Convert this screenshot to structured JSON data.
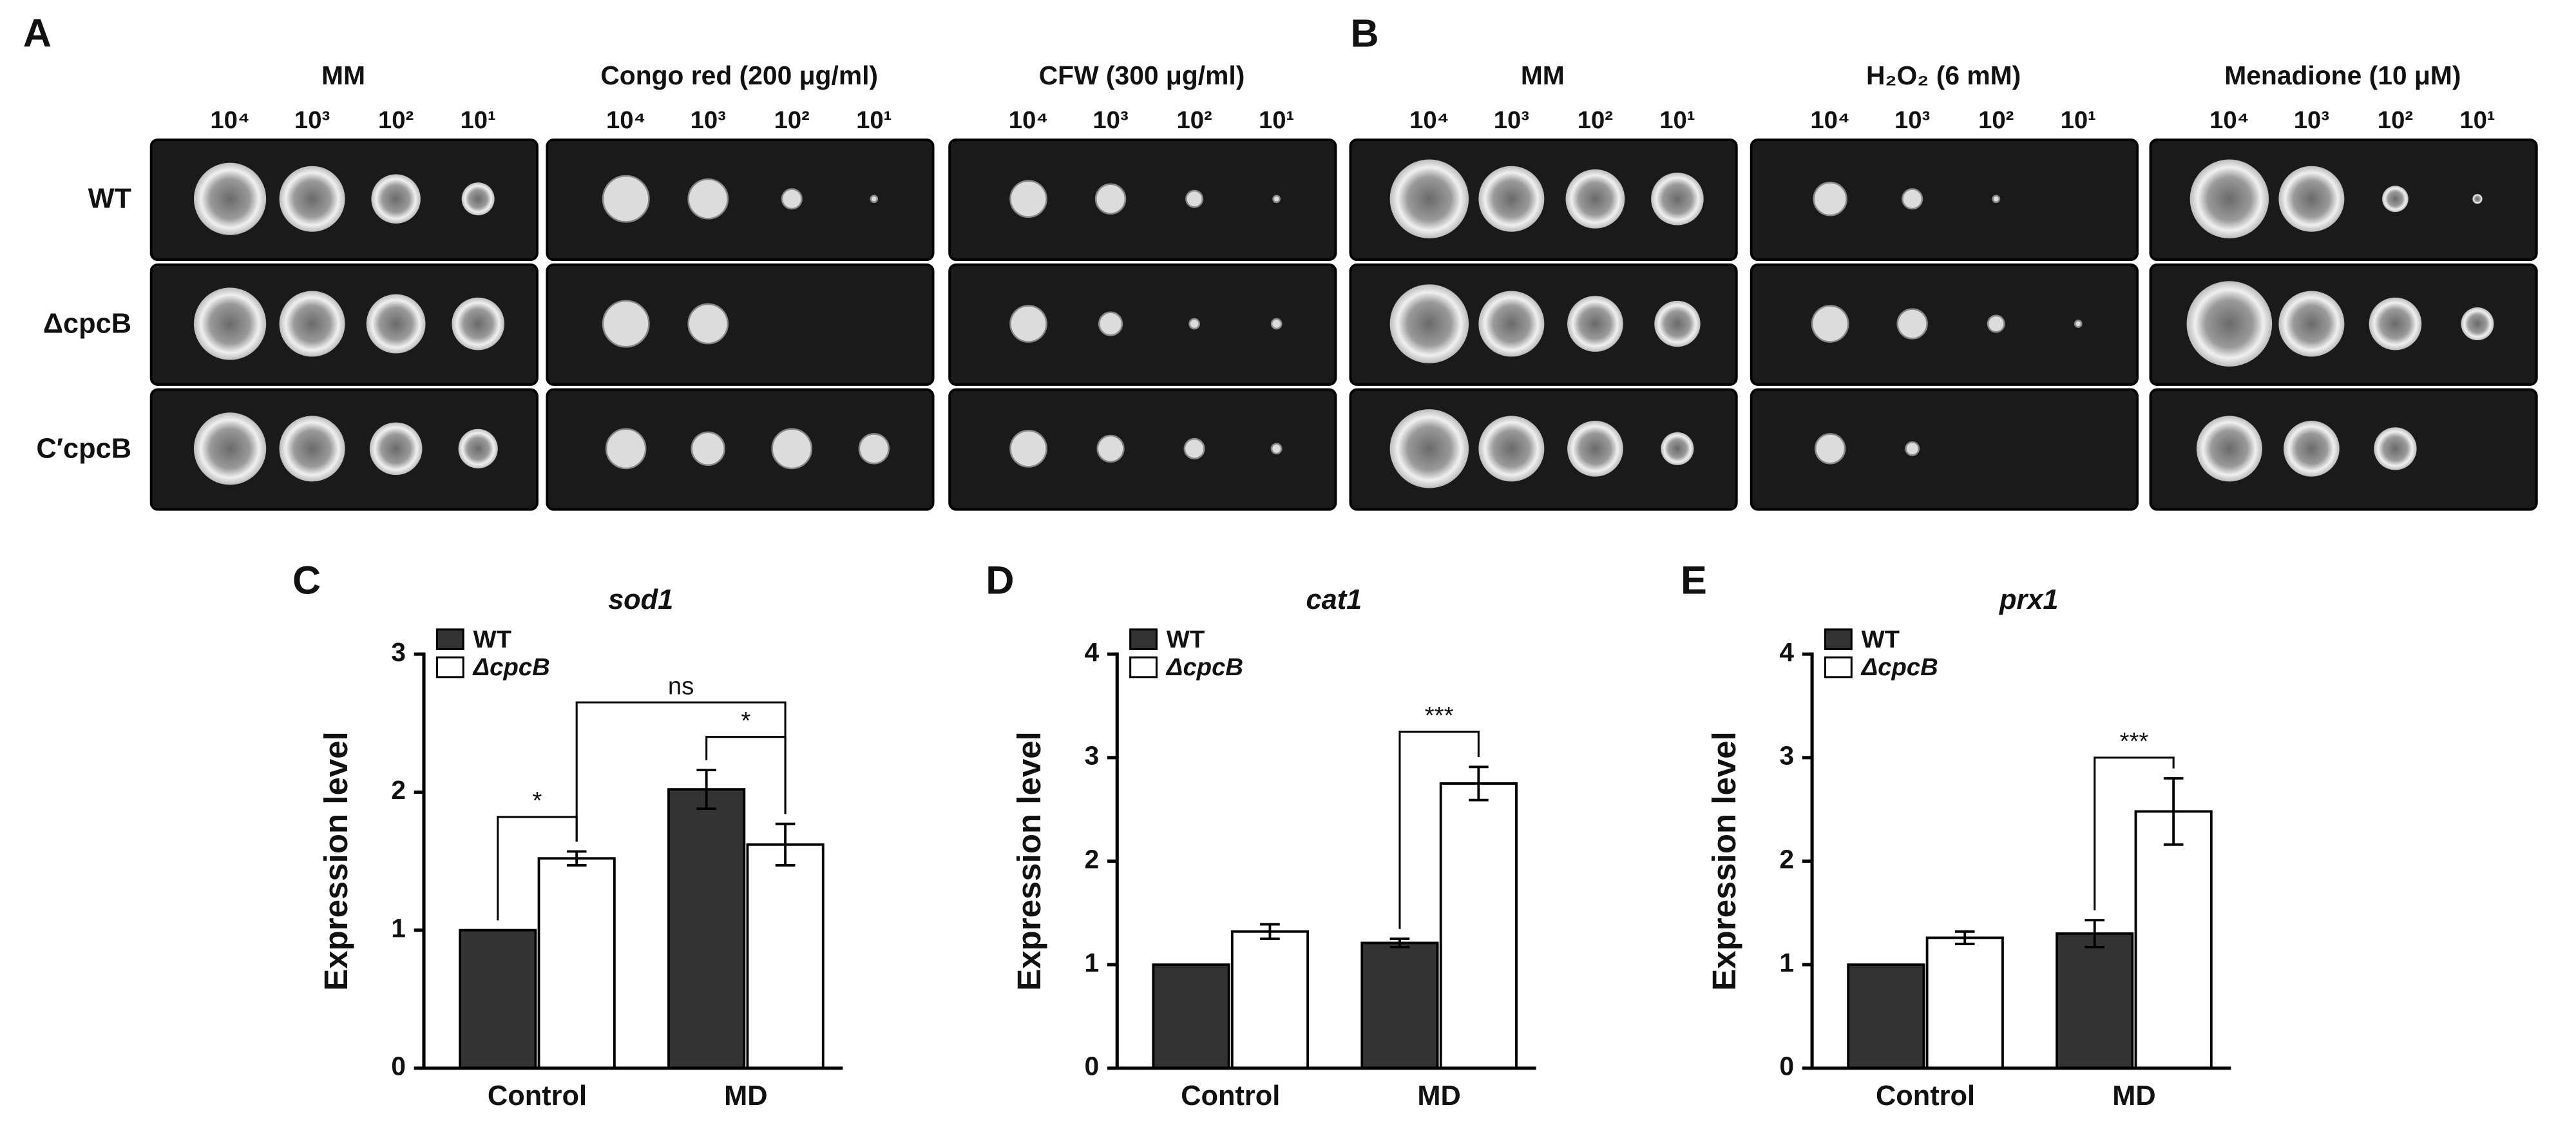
{
  "panels": [
    {
      "label": "A",
      "conditions": [
        "MM",
        "Congo red (200 μg/ml)",
        "CFW (300 μg/ml)"
      ],
      "dilutions": [
        "10⁴",
        "10³",
        "10²",
        "10¹"
      ],
      "rows": [
        "WT",
        "ΔcpcB",
        "C′cpcB"
      ]
    },
    {
      "label": "B",
      "conditions": [
        "MM",
        "H₂O₂ (6 mM)",
        "Menadione (10 μM)"
      ],
      "dilutions": [
        "10⁴",
        "10³",
        "10²",
        "10¹"
      ]
    }
  ],
  "chart_data": [
    {
      "type": "bar",
      "label": "C",
      "title": "sod1",
      "y_label": "Expression level",
      "categories": [
        "Control",
        "MD"
      ],
      "series": [
        {
          "name": "WT",
          "color": "#333333",
          "values": [
            1,
            2.02
          ],
          "errors": [
            0,
            0.14
          ]
        },
        {
          "name": "ΔcpcB",
          "color": "#ffffff",
          "values": [
            1.52,
            1.62
          ],
          "errors": [
            0.05,
            0.15
          ]
        }
      ],
      "ylim": [
        0,
        3
      ],
      "yticks": [
        0,
        1,
        2,
        3
      ],
      "annotations": [
        "*",
        "ns",
        "*"
      ]
    },
    {
      "type": "bar",
      "label": "D",
      "title": "cat1",
      "y_label": "Expression level",
      "categories": [
        "Control",
        "MD"
      ],
      "series": [
        {
          "name": "WT",
          "color": "#333333",
          "values": [
            1,
            1.21
          ],
          "errors": [
            0,
            0.04
          ]
        },
        {
          "name": "ΔcpcB",
          "color": "#ffffff",
          "values": [
            1.32,
            2.75
          ],
          "errors": [
            0.07,
            0.16
          ]
        }
      ],
      "ylim": [
        0,
        4
      ],
      "yticks": [
        0,
        1,
        2,
        3,
        4
      ],
      "annotations": [
        "***"
      ]
    },
    {
      "type": "bar",
      "label": "E",
      "title": "prx1",
      "y_label": "Expression level",
      "categories": [
        "Control",
        "MD"
      ],
      "series": [
        {
          "name": "WT",
          "color": "#333333",
          "values": [
            1,
            1.3
          ],
          "errors": [
            0,
            0.13
          ]
        },
        {
          "name": "ΔcpcB",
          "color": "#ffffff",
          "values": [
            1.26,
            2.48
          ],
          "errors": [
            0.06,
            0.32
          ]
        }
      ],
      "ylim": [
        0,
        4
      ],
      "yticks": [
        0,
        1,
        2,
        3,
        4
      ],
      "annotations": [
        "***"
      ]
    }
  ]
}
